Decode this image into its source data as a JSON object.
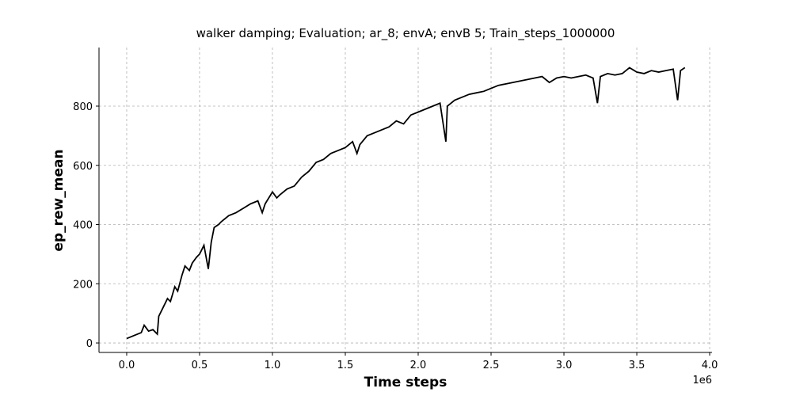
{
  "chart_data": {
    "type": "line",
    "title": "walker damping; Evaluation; ar_8; envA; envB 5; Train_steps_1000000",
    "x_label": "Time steps",
    "y_label": "ep_rew_mean",
    "x_multiplier_label": "1e6",
    "xlim": [
      -0.19,
      4.016
    ],
    "ylim": [
      -32,
      998
    ],
    "xticks": [
      {
        "value": 0,
        "label": "0.0"
      },
      0.5,
      {
        "value": 1,
        "label": "1.0"
      },
      1.5,
      {
        "value": 2,
        "label": "2.0"
      },
      2.5,
      {
        "value": 3,
        "label": "3.0"
      },
      3.5,
      {
        "value": 4,
        "label": "4.0"
      }
    ],
    "yticks": [
      0,
      200,
      400,
      600,
      800
    ],
    "grid": true,
    "x": [
      0.0,
      0.05,
      0.1,
      0.12,
      0.15,
      0.18,
      0.21,
      0.22,
      0.25,
      0.28,
      0.3,
      0.33,
      0.35,
      0.38,
      0.4,
      0.43,
      0.45,
      0.48,
      0.5,
      0.53,
      0.56,
      0.58,
      0.6,
      0.63,
      0.65,
      0.7,
      0.75,
      0.8,
      0.85,
      0.9,
      0.93,
      0.95,
      1.0,
      1.03,
      1.05,
      1.1,
      1.15,
      1.2,
      1.25,
      1.3,
      1.35,
      1.4,
      1.45,
      1.5,
      1.55,
      1.58,
      1.6,
      1.65,
      1.7,
      1.75,
      1.8,
      1.85,
      1.9,
      1.95,
      2.0,
      2.05,
      2.1,
      2.15,
      2.19,
      2.2,
      2.25,
      2.3,
      2.35,
      2.4,
      2.45,
      2.5,
      2.55,
      2.6,
      2.65,
      2.7,
      2.75,
      2.8,
      2.85,
      2.9,
      2.95,
      3.0,
      3.05,
      3.1,
      3.15,
      3.2,
      3.23,
      3.25,
      3.3,
      3.35,
      3.4,
      3.45,
      3.5,
      3.55,
      3.6,
      3.65,
      3.7,
      3.75,
      3.78,
      3.8,
      3.83
    ],
    "series": [
      {
        "name": "ep_rew_mean",
        "color": "#000000",
        "values": [
          15,
          25,
          35,
          60,
          40,
          45,
          30,
          90,
          120,
          150,
          140,
          190,
          175,
          230,
          260,
          245,
          270,
          290,
          300,
          330,
          250,
          340,
          390,
          400,
          410,
          430,
          440,
          455,
          470,
          480,
          440,
          470,
          510,
          490,
          500,
          520,
          530,
          560,
          580,
          610,
          620,
          640,
          650,
          660,
          680,
          640,
          670,
          700,
          710,
          720,
          730,
          750,
          740,
          770,
          780,
          790,
          800,
          810,
          680,
          800,
          820,
          830,
          840,
          845,
          850,
          860,
          870,
          875,
          880,
          885,
          890,
          895,
          900,
          880,
          895,
          900,
          895,
          900,
          905,
          895,
          810,
          900,
          910,
          905,
          910,
          930,
          915,
          910,
          920,
          915,
          920,
          925,
          820,
          920,
          930
        ]
      }
    ]
  }
}
